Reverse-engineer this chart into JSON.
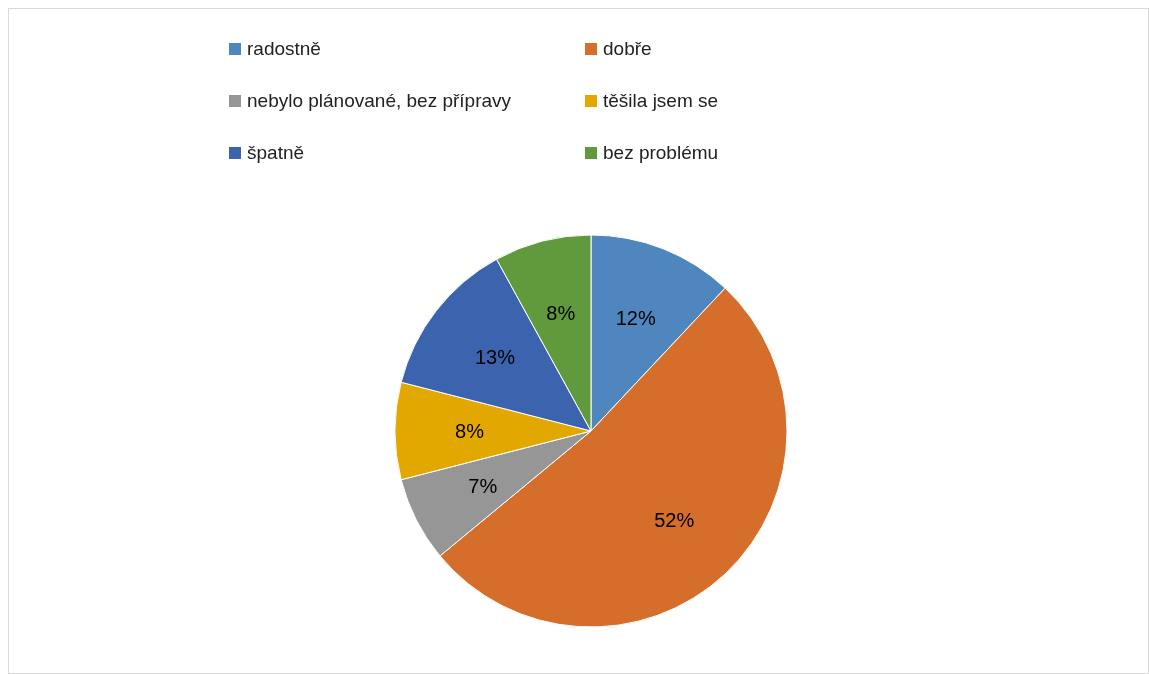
{
  "chart_data": {
    "type": "pie",
    "categories": [
      "radostně",
      "dobře",
      "nebylo plánované, bez přípravy",
      "těšila jsem se",
      "špatně",
      "bez problému"
    ],
    "values": [
      12,
      52,
      7,
      8,
      13,
      8
    ],
    "value_labels": [
      "12%",
      "52%",
      "7%",
      "8%",
      "13%",
      "8%"
    ],
    "colors": [
      "#4f86be",
      "#d46e2a",
      "#969696",
      "#e2a800",
      "#3b63ae",
      "#619a3d"
    ],
    "legend": "top"
  }
}
